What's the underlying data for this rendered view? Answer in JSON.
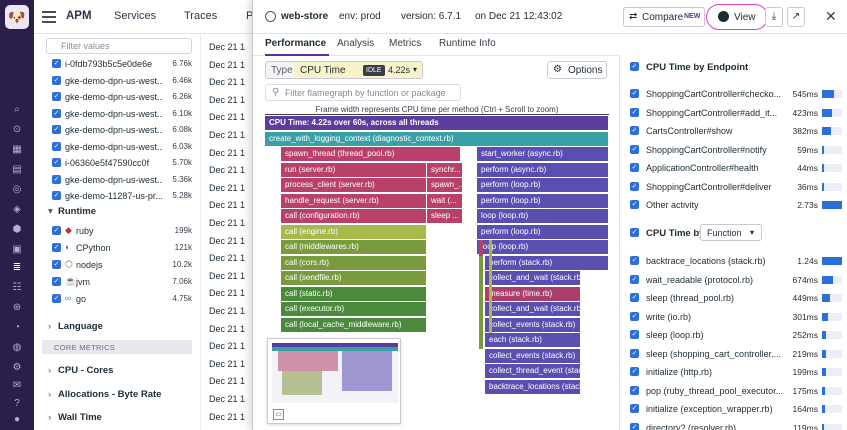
{
  "app": {
    "title": "APM",
    "nav": [
      "Services",
      "Traces",
      "P"
    ]
  },
  "filters": {
    "search_placeholder": "Filter values",
    "hosts": [
      {
        "label": "i-0fdb793b5c5e0de6e",
        "value": "6.76k"
      },
      {
        "label": "gke-demo-dpn-us-west...",
        "value": "6.46k"
      },
      {
        "label": "gke-demo-dpn-us-west...",
        "value": "6.26k"
      },
      {
        "label": "gke-demo-dpn-us-west...",
        "value": "6.10k"
      },
      {
        "label": "gke-demo-dpn-us-west...",
        "value": "6.08k"
      },
      {
        "label": "gke-demo-dpn-us-west...",
        "value": "6.03k"
      },
      {
        "label": "i-06360e5f47590cc0f",
        "value": "5.70k"
      },
      {
        "label": "gke-demo-dpn-us-west...",
        "value": "5.36k"
      },
      {
        "label": "gke-demo-11287-us-pr...",
        "value": "5.28k"
      }
    ],
    "runtime_title": "Runtime",
    "runtimes": [
      {
        "label": "ruby",
        "value": "199k",
        "icon": "ruby-icon"
      },
      {
        "label": "CPython",
        "value": "121k",
        "icon": "python-icon"
      },
      {
        "label": "nodejs",
        "value": "10.2k",
        "icon": "nodejs-icon"
      },
      {
        "label": "jvm",
        "value": "7.06k",
        "icon": "java-icon"
      },
      {
        "label": "go",
        "value": "4.75k",
        "icon": "go-icon"
      }
    ],
    "language_title": "Language",
    "core_metrics": "CORE METRICS",
    "cpu_cores": "CPU - Cores",
    "allocations": "Allocations - Byte Rate",
    "wall_time": "Wall Time"
  },
  "timestamps": [
    "Dec 21 1",
    "Dec 21 1",
    "Dec 21 1",
    "Dec 21 1",
    "Dec 21 1",
    "Dec 21 1",
    "Dec 21 1",
    "Dec 21 1",
    "Dec 21 1",
    "Dec 21 1",
    "Dec 21 1",
    "Dec 21 1",
    "Dec 21 1",
    "Dec 21 1",
    "Dec 21 1",
    "Dec 21 1",
    "Dec 21 1",
    "Dec 21 1",
    "Dec 21 1",
    "Dec 21 1",
    "Dec 21 1",
    "Dec 21 1"
  ],
  "panel": {
    "service": "web-store",
    "env": "env: prod",
    "version": "version: 6.7.1",
    "date": "on Dec 21 12:43:02",
    "compare_label": "Compare",
    "new_badge": "NEW",
    "view_label": "View",
    "tabs": [
      "Performance",
      "Analysis",
      "Metrics",
      "Runtime Info"
    ],
    "type_label": "Type",
    "type_value": "CPU Time",
    "idle_badge": "IDLE",
    "idle_value": "4.22s",
    "options_label": "Options",
    "filter_placeholder": "Filter flamegraph by function or package",
    "frame_note": "Frame width represents CPU time per method (Ctrl + Scroll to zoom)"
  },
  "flamegraph": [
    {
      "label": "CPU Time: 4.22s over 60s, across all threads",
      "color": "#5a3d9c",
      "bold": true
    },
    {
      "label": "create_with_logging_context (diagnostic_context.rb)",
      "color": "#3aa0a8"
    },
    {
      "label": "spawn_thread (thread_pool.rb)",
      "color": "#b8406a"
    },
    {
      "label": "start_worker (async.rb)",
      "color": "#5a4fb0"
    },
    {
      "label": "run (server.rb)",
      "color": "#b8406a"
    },
    {
      "label": "synchr...",
      "color": "#b8406a"
    },
    {
      "label": "perform (async.rb)",
      "color": "#5a4fb0"
    },
    {
      "label": "process_client (server.rb)",
      "color": "#b8406a"
    },
    {
      "label": "spawn_...",
      "color": "#b8406a"
    },
    {
      "label": "perform (loop.rb)",
      "color": "#5a4fb0"
    },
    {
      "label": "handle_request (server.rb)",
      "color": "#b8406a"
    },
    {
      "label": "wait (...",
      "color": "#b8406a"
    },
    {
      "label": "perform (loop.rb)",
      "color": "#5a4fb0"
    },
    {
      "label": "call (configuration.rb)",
      "color": "#b8406a"
    },
    {
      "label": "sleep ...",
      "color": "#b8406a"
    },
    {
      "label": "loop (loop.rb)",
      "color": "#5a4fb0"
    },
    {
      "label": "call (engine.rb)",
      "color": "#a8b84a"
    },
    {
      "label": "perform (loop.rb)",
      "color": "#5a4fb0"
    },
    {
      "label": "call (middlewares.rb)",
      "color": "#7a9a3e"
    },
    {
      "label": "loop (loop.rb)",
      "color": "#5a4fb0"
    },
    {
      "label": "call (cors.rb)",
      "color": "#7a9a3e"
    },
    {
      "label": "perform (stack.rb)",
      "color": "#5a4fb0"
    },
    {
      "label": "call (sendfile.rb)",
      "color": "#7a9a3e"
    },
    {
      "label": "collect_and_wait (stack.rb)",
      "color": "#5a4fb0"
    },
    {
      "label": "call (static.rb)",
      "color": "#4a8a3a"
    },
    {
      "label": "measure (time.rb)",
      "color": "#a8406a"
    },
    {
      "label": "call (executor.rb)",
      "color": "#4a8a3a"
    },
    {
      "label": "collect_and_wait (stack.rb)",
      "color": "#5a4fb0"
    },
    {
      "label": "call (local_cache_middleware.rb)",
      "color": "#4a8a3a"
    },
    {
      "label": "collect_events (stack.rb)",
      "color": "#5a4fb0"
    },
    {
      "label": "each (stack.rb)",
      "color": "#5a4fb0"
    },
    {
      "label": "collect_events (stack.rb)",
      "color": "#5a4fb0"
    },
    {
      "label": "collect_thread_event (stack...",
      "color": "#5a4fb0"
    },
    {
      "label": "backtrace_locations (stack...",
      "color": "#5a4fb0"
    }
  ],
  "right_panel": {
    "endpoint_title": "CPU Time by Endpoint",
    "endpoints": [
      {
        "label": "ShoppingCartController#checko...",
        "value": "545ms",
        "fill": 0.6
      },
      {
        "label": "ShoppingCartController#add_it...",
        "value": "423ms",
        "fill": 0.5
      },
      {
        "label": "CartsController#show",
        "value": "382ms",
        "fill": 0.45
      },
      {
        "label": "ShoppingCartController#notify",
        "value": "59ms",
        "fill": 0.1
      },
      {
        "label": "ApplicationController#health",
        "value": "44ms",
        "fill": 0.08
      },
      {
        "label": "ShoppingCartController#deliver",
        "value": "36ms",
        "fill": 0.07
      },
      {
        "label": "Other activity",
        "value": "2.73s",
        "fill": 1.0
      }
    ],
    "by_label": "CPU Time by",
    "by_select": "Function",
    "functions": [
      {
        "label": "backtrace_locations (stack.rb)",
        "value": "1.24s",
        "fill": 1.0
      },
      {
        "label": "wait_readable (protocol.rb)",
        "value": "674ms",
        "fill": 0.55
      },
      {
        "label": "sleep (thread_pool.rb)",
        "value": "449ms",
        "fill": 0.4
      },
      {
        "label": "write (io.rb)",
        "value": "301ms",
        "fill": 0.28
      },
      {
        "label": "sleep (loop.rb)",
        "value": "252ms",
        "fill": 0.22
      },
      {
        "label": "sleep (shopping_cart_controller....",
        "value": "219ms",
        "fill": 0.2
      },
      {
        "label": "initialize (http.rb)",
        "value": "199ms",
        "fill": 0.18
      },
      {
        "label": "pop (ruby_thread_pool_executor...",
        "value": "175ms",
        "fill": 0.16
      },
      {
        "label": "initialize (exception_wrapper.rb)",
        "value": "164ms",
        "fill": 0.15
      },
      {
        "label": "directory? (resolver.rb)",
        "value": "119ms",
        "fill": 0.12
      }
    ]
  }
}
